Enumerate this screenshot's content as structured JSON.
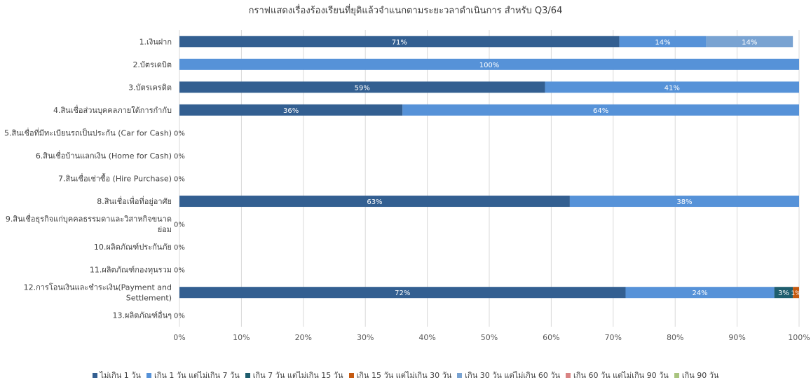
{
  "chart_data": {
    "type": "bar",
    "orientation": "horizontal",
    "stacked": "percent",
    "title": "กราฟแสดงเรื่องร้องเรียนที่ยุติแล้วจำแนกตามระยะวลาดำเนินการ สำหรับ Q3/64",
    "categories": [
      "1.เงินฝาก",
      "2.บัตรเดบิต",
      "3.บัตรเครดิต",
      "4.สินเชื่อส่วนบุคคลภายใต้การกำกับ",
      "5.สินเชื่อที่มีทะเบียนรถเป็นประกัน (Car for Cash)",
      "6.สินเชื่อบ้านแลกเงิน (Home for Cash)",
      "7.สินเชื่อเช่าซื้อ (Hire Purchase)",
      "8.สินเชื่อเพื่อที่อยู่อาศัย",
      "9.สินเชื่อธุรกิจแก่บุคคลธรรมดาและวิสาหกิจขนาดย่อม",
      "10.ผลิตภัณฑ์ประกันภัย",
      "11.ผลิตภัณฑ์กองทุนรวม",
      "12.การโอนเงินและชำระเงิน(Payment and Settlement)",
      "13.ผลิตภัณฑ์อื่นๆ"
    ],
    "category_lines": [
      [
        "1.เงินฝาก"
      ],
      [
        "2.บัตรเดบิต"
      ],
      [
        "3.บัตรเครดิต"
      ],
      [
        "4.สินเชื่อส่วนบุคคลภายใต้การกำกับ"
      ],
      [
        "5.สินเชื่อที่มีทะเบียนรถเป็นประกัน (Car for Cash)"
      ],
      [
        "6.สินเชื่อบ้านแลกเงิน (Home for Cash)"
      ],
      [
        "7.สินเชื่อเช่าซื้อ (Hire Purchase)"
      ],
      [
        "8.สินเชื่อเพื่อที่อยู่อาศัย"
      ],
      [
        "9.สินเชื่อธุรกิจแก่บุคคลธรรมดาและวิสาหกิจขนาด",
        "ย่อม"
      ],
      [
        "10.ผลิตภัณฑ์ประกันภัย"
      ],
      [
        "11.ผลิตภัณฑ์กองทุนรวม"
      ],
      [
        "12.การโอนเงินและชำระเงิน(Payment and",
        "Settlement)"
      ],
      [
        "13.ผลิตภัณฑ์อื่นๆ"
      ]
    ],
    "series": [
      {
        "name": "ไม่เกิน 1 วัน",
        "color": "#335f91",
        "values": [
          71,
          0,
          59,
          36,
          0,
          0,
          0,
          63,
          0,
          0,
          0,
          72,
          0
        ]
      },
      {
        "name": "เกิน 1 วัน แต่ไม่เกิน 7 วัน",
        "color": "#5692d8",
        "values": [
          14,
          100,
          41,
          64,
          0,
          0,
          0,
          38,
          0,
          0,
          0,
          24,
          0
        ]
      },
      {
        "name": "เกิน 7 วัน แต่ไม่เกิน 15 วัน",
        "color": "#1f5e6e",
        "values": [
          0,
          0,
          0,
          0,
          0,
          0,
          0,
          0,
          0,
          0,
          0,
          3,
          0
        ]
      },
      {
        "name": "เกิน 15 วัน แต่ไม่เกิน 30 วัน",
        "color": "#c55a11",
        "values": [
          0,
          0,
          0,
          0,
          0,
          0,
          0,
          0,
          0,
          0,
          0,
          1,
          0
        ]
      },
      {
        "name": "เกิน 30 วัน แต่ไม่เกิน 60 วัน",
        "color": "#79a3d2",
        "values": [
          14,
          0,
          0,
          0,
          0,
          0,
          0,
          0,
          0,
          0,
          0,
          0,
          0
        ]
      },
      {
        "name": "เกิน 60 วัน แต่ไม่เกิน 90 วัน",
        "color": "#d98383",
        "values": [
          0,
          0,
          0,
          0,
          0,
          0,
          0,
          0,
          0,
          0,
          0,
          0,
          0
        ]
      },
      {
        "name": "เกิน 90 วัน",
        "color": "#a9c47f",
        "values": [
          0,
          0,
          0,
          0,
          0,
          0,
          0,
          0,
          0,
          0,
          0,
          0,
          0
        ]
      }
    ],
    "zero_label": "0%",
    "xlim": [
      0,
      100
    ],
    "xticks": [
      0,
      10,
      20,
      30,
      40,
      50,
      60,
      70,
      80,
      90,
      100
    ],
    "xtick_labels": [
      "0%",
      "10%",
      "20%",
      "30%",
      "40%",
      "50%",
      "60%",
      "70%",
      "80%",
      "90%",
      "100%"
    ],
    "grid": true,
    "legend_position": "bottom",
    "xlabel": "",
    "ylabel": ""
  }
}
